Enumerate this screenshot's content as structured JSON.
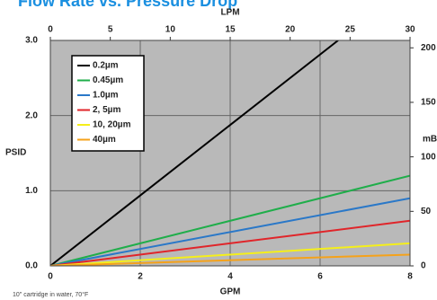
{
  "chart_data": {
    "type": "line",
    "title": "Flow Rate vs. Pressure Drop",
    "xlabel": "GPM",
    "x2label": "LPM",
    "ylabel": "PSID",
    "y2label": "mB",
    "note": "10\" cartridge in water, 70°F",
    "xlim": [
      0,
      8
    ],
    "xticks": [
      0,
      2,
      4,
      6,
      8
    ],
    "x2lim": [
      0,
      30
    ],
    "x2ticks": [
      0,
      5,
      10,
      15,
      20,
      25,
      30
    ],
    "ylim": [
      0,
      3.0
    ],
    "yticks": [
      {
        "value": 0,
        "label": "0.0"
      },
      {
        "value": 1,
        "label": "1.0"
      },
      {
        "value": 2,
        "label": "2.0"
      },
      {
        "value": 3,
        "label": "3.0"
      }
    ],
    "y2lim": [
      0,
      206.8
    ],
    "y2ticks": [
      0,
      50,
      100,
      150,
      200
    ],
    "grid": true,
    "legend": "upper left",
    "background": "#b9b9b9",
    "series": [
      {
        "name": "0.2µm",
        "color": "#000000",
        "x": [
          0,
          6.4
        ],
        "values": [
          0,
          3.0
        ]
      },
      {
        "name": "0.45µm",
        "color": "#1fae4a",
        "x": [
          0,
          8
        ],
        "values": [
          0,
          1.2
        ]
      },
      {
        "name": "1.0µm",
        "color": "#2a78c8",
        "x": [
          0,
          8
        ],
        "values": [
          0,
          0.9
        ]
      },
      {
        "name": "2, 5µm",
        "color": "#e0252a",
        "x": [
          0,
          8
        ],
        "values": [
          0,
          0.6
        ]
      },
      {
        "name": "10, 20µm",
        "color": "#f5ef1a",
        "x": [
          0,
          8
        ],
        "values": [
          0,
          0.3
        ]
      },
      {
        "name": "40µm",
        "color": "#f5a21a",
        "x": [
          0,
          8
        ],
        "values": [
          0,
          0.15
        ]
      }
    ]
  }
}
